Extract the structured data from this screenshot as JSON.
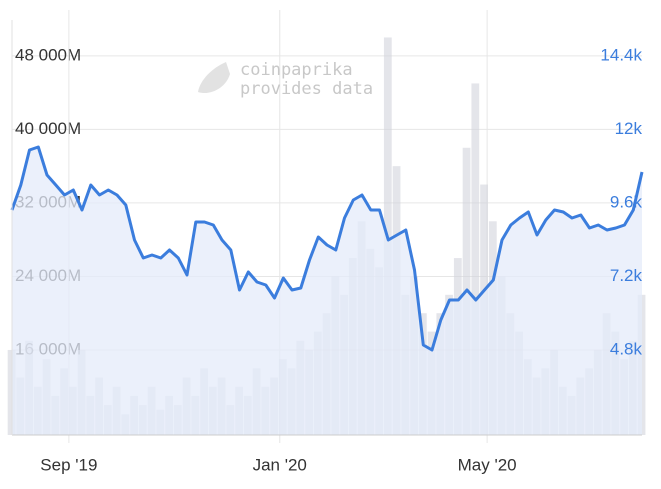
{
  "chart_data": {
    "type": "line",
    "watermark": {
      "title": "coinpaprika",
      "subtitle": "provides data"
    },
    "xlim": [
      0,
      72
    ],
    "xticks": [
      {
        "value": 6.5,
        "label": "Sep '19"
      },
      {
        "value": 30.6,
        "label": "Jan '20"
      },
      {
        "value": 54.3,
        "label": "May '20"
      }
    ],
    "ylim": [
      6750,
      51900
    ],
    "yticks": [
      {
        "value": 16000,
        "label": "16 000M"
      },
      {
        "value": 24000,
        "label": "24 000M"
      },
      {
        "value": 32000,
        "label": "32 000M"
      },
      {
        "value": 40000,
        "label": "40 000M"
      },
      {
        "value": 48000,
        "label": "48 000M"
      }
    ],
    "y2lim": [
      2025,
      15575
    ],
    "y2ticks": [
      {
        "value": 4800,
        "label": "4.8k"
      },
      {
        "value": 7200,
        "label": "7.2k"
      },
      {
        "value": 9600,
        "label": "9.6k"
      },
      {
        "value": 12000,
        "label": "12k"
      },
      {
        "value": 14400,
        "label": "14.4k"
      }
    ],
    "grid": true,
    "series": [
      {
        "type": "bar",
        "color": "#d2d4dc",
        "values": [
          16000,
          13000,
          17000,
          12000,
          15000,
          11000,
          14000,
          12000,
          16000,
          11000,
          13000,
          10000,
          12000,
          9000,
          11000,
          10000,
          12000,
          9500,
          11000,
          10000,
          13000,
          11000,
          14000,
          12000,
          13000,
          10000,
          12000,
          11000,
          14000,
          12000,
          13000,
          15000,
          14000,
          17000,
          16000,
          18000,
          20000,
          24000,
          22000,
          26000,
          30000,
          27000,
          25000,
          50000,
          36000,
          22000,
          24000,
          20000,
          18000,
          20000,
          22000,
          26000,
          38000,
          45000,
          34000,
          30000,
          24000,
          20000,
          18000,
          15000,
          13000,
          14000,
          16000,
          12000,
          11000,
          13000,
          14000,
          16000,
          20000,
          18000,
          15000,
          17000,
          22000
        ]
      },
      {
        "type": "area",
        "axis": "y2",
        "color": "#3b7ddd",
        "fill": "#e4ebfa",
        "values": [
          9371,
          10187,
          11330,
          11428,
          10514,
          10187,
          9861,
          10024,
          9371,
          10187,
          9861,
          10024,
          9861,
          9535,
          8392,
          7804,
          7902,
          7804,
          8065,
          7804,
          7249,
          8979,
          8979,
          8881,
          8392,
          8065,
          6759,
          7347,
          7020,
          6922,
          6498,
          7151,
          6759,
          6824,
          7739,
          8489,
          8228,
          8065,
          9110,
          9698,
          9861,
          9371,
          9371,
          8392,
          8555,
          8718,
          7412,
          4963,
          4800,
          5780,
          6433,
          6433,
          6759,
          6433,
          6759,
          7086,
          8392,
          8881,
          9110,
          9306,
          8555,
          9044,
          9371,
          9306,
          9110,
          9208,
          8783,
          8881,
          8718,
          8783,
          8881,
          9371,
          10612
        ]
      }
    ]
  }
}
